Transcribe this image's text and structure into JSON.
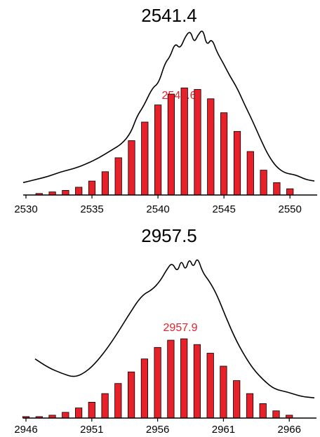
{
  "colors": {
    "bars": "#e8202a",
    "bar_stroke": "#000000",
    "profile": "#000000",
    "axis": "#000000",
    "centroid_label": "#e8202a"
  },
  "chart_data": [
    {
      "type": "bar",
      "title": "2541.4",
      "centroid_label": "2541.6",
      "xlim": [
        2530,
        2551
      ],
      "ylim": [
        0,
        100
      ],
      "x_ticks": [
        2530,
        2535,
        2540,
        2545,
        2550
      ],
      "x_tick_labels": [
        "2530",
        "2535",
        "2540",
        "2545",
        "2550"
      ],
      "series": [
        {
          "type": "bar",
          "x": [
            2531,
            2532,
            2533,
            2534,
            2535,
            2536,
            2537,
            2538,
            2539,
            2540,
            2541,
            2542,
            2543,
            2544,
            2545,
            2546,
            2547,
            2548,
            2549,
            2550
          ],
          "values": [
            1,
            2,
            3,
            5,
            9,
            15,
            24,
            35,
            47,
            58,
            65,
            69,
            68,
            62,
            53,
            41,
            28,
            16,
            8,
            4
          ]
        },
        {
          "type": "line",
          "x": [
            2528.0,
            2529.0,
            2530.0,
            2531.0,
            2532.0,
            2533.0,
            2534.0,
            2535.0,
            2535.8,
            2536.5,
            2537.0,
            2537.5,
            2538.2,
            2538.7,
            2539.2,
            2539.6,
            2540.0,
            2540.4,
            2540.8,
            2541.2,
            2541.5,
            2541.8,
            2542.2,
            2542.5,
            2542.9,
            2543.3,
            2543.8,
            2544.3,
            2544.9,
            2545.5,
            2546.1,
            2546.8,
            2547.4,
            2548.0,
            2548.7,
            2549.5,
            2550.3,
            2551.0
          ],
          "values": [
            8,
            10,
            12,
            15,
            17,
            20,
            24,
            29,
            33,
            40,
            51,
            57,
            69,
            72,
            85,
            89,
            98,
            94,
            102,
            106,
            98,
            103,
            107,
            96,
            101,
            92,
            85,
            77,
            69,
            58,
            48,
            35,
            25,
            18,
            14,
            13,
            10,
            9
          ]
        }
      ]
    },
    {
      "type": "bar",
      "title": "2957.5",
      "centroid_label": "2957.9",
      "xlim": [
        2946,
        2967
      ],
      "ylim": [
        0,
        100
      ],
      "x_ticks": [
        2946,
        2951,
        2956,
        2961,
        2966
      ],
      "x_tick_labels": [
        "2946",
        "2951",
        "2956",
        "2961",
        "2966"
      ],
      "series": [
        {
          "type": "bar",
          "x": [
            2946,
            2947,
            2948,
            2949,
            2950,
            2951,
            2952,
            2953,
            2954,
            2955,
            2956,
            2957,
            2958,
            2959,
            2960,
            2961,
            2962,
            2963,
            2964,
            2965,
            2966
          ],
          "values": [
            1,
            1,
            2,
            4,
            7,
            11,
            17,
            24,
            32,
            41,
            49,
            54,
            55,
            51,
            45,
            36,
            26,
            17,
            10,
            5,
            2
          ]
        },
        {
          "type": "line",
          "x": [
            2946.0,
            2947.0,
            2948.0,
            2949.0,
            2950.0,
            2951.0,
            2952.0,
            2953.0,
            2954.0,
            2954.8,
            2955.4,
            2955.9,
            2956.3,
            2956.7,
            2957.0,
            2957.3,
            2957.6,
            2957.9,
            2958.2,
            2958.6,
            2959.1,
            2959.7,
            2960.3,
            2961.0,
            2961.7,
            2962.4,
            2963.2,
            2964.0,
            2965.0,
            2966.0,
            2967.0
          ],
          "values": [
            41,
            35,
            31,
            28,
            33,
            43,
            56,
            71,
            85,
            89,
            95,
            103,
            108,
            101,
            110,
            102,
            111,
            104,
            112,
            101,
            95,
            85,
            71,
            56,
            44,
            34,
            26,
            20,
            18,
            15,
            14
          ]
        }
      ]
    }
  ]
}
